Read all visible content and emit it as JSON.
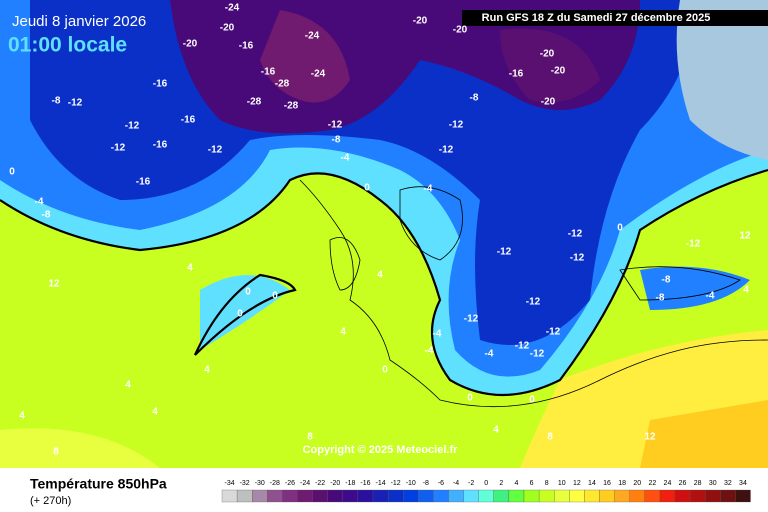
{
  "header": {
    "date": "Jeudi 8 janvier 2026",
    "time": "01:00 locale",
    "run": "Run GFS 18 Z du Samedi 27 décembre 2025",
    "copyright": "Copyright © 2025 Meteociel.fr"
  },
  "footer": {
    "title": "Température 850hPa",
    "lead": "(+ 270h)"
  },
  "scale": {
    "values": [
      -34,
      -32,
      -30,
      -28,
      -26,
      -24,
      -22,
      -20,
      -18,
      -16,
      -14,
      -12,
      -10,
      -8,
      -6,
      -4,
      -2,
      0,
      2,
      4,
      6,
      8,
      10,
      12,
      14,
      16,
      18,
      20,
      22,
      24,
      26,
      28,
      30,
      32,
      34
    ],
    "colors": [
      "#d9d9d9",
      "#bfbfbf",
      "#a888a8",
      "#905090",
      "#803080",
      "#701a70",
      "#5a1070",
      "#480a78",
      "#3c0a8c",
      "#2a10a0",
      "#1a20b4",
      "#0a30c8",
      "#0040e0",
      "#1060f0",
      "#2080ff",
      "#40b0ff",
      "#60e0ff",
      "#60ffd8",
      "#40f080",
      "#60ff40",
      "#a0ff20",
      "#c8ff20",
      "#e8ff40",
      "#ffff40",
      "#ffe830",
      "#ffcc20",
      "#ffa820",
      "#ff8010",
      "#ff5010",
      "#f02010",
      "#d01010",
      "#b01010",
      "#901010",
      "#701010",
      "#401010"
    ]
  },
  "contour_labels": [
    -24,
    -20,
    -20,
    -16,
    -24,
    -24,
    -16,
    -28,
    -28,
    -28,
    -16,
    -16,
    -12,
    -12,
    -16,
    -16,
    -12,
    -12,
    -8,
    -20,
    -20,
    -20,
    -20,
    -16,
    -20,
    -8,
    -12,
    -12,
    -12,
    -8,
    -4,
    -4,
    0,
    0,
    -4,
    -8,
    4,
    12,
    0,
    0,
    0,
    4,
    4,
    -12,
    -12,
    -12,
    -12,
    -12,
    -12,
    -12,
    -12,
    -4,
    -4,
    -4,
    0,
    0,
    0,
    4,
    8,
    12,
    -12,
    12,
    -8,
    -4,
    -8,
    4,
    0,
    4,
    4,
    8,
    4,
    8,
    4
  ]
}
